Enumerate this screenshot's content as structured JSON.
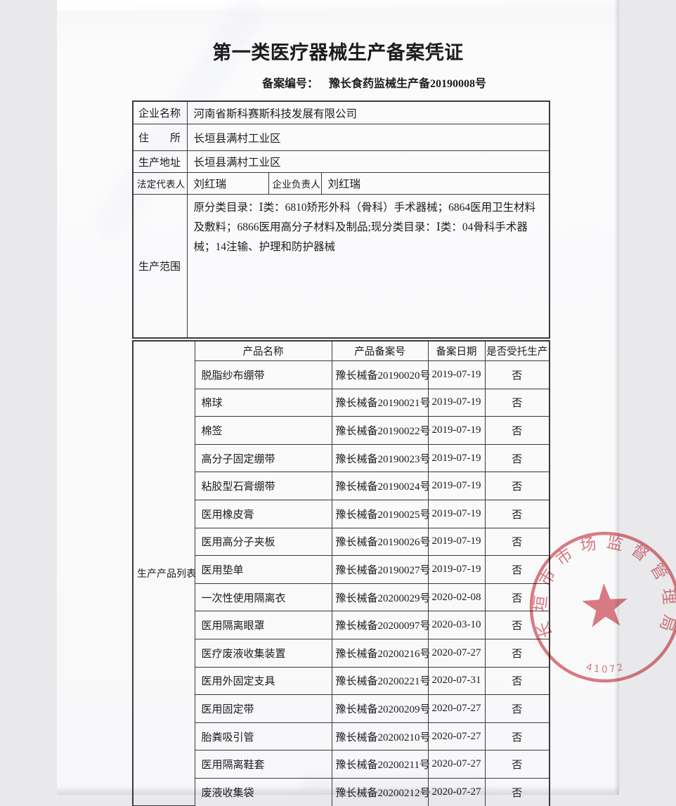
{
  "page": {
    "title": "第一类医疗器械生产备案凭证",
    "filing_label": "备案编号：",
    "filing_number": "豫长食药监械生产备20190008号"
  },
  "info": {
    "company_name_label": "企业名称",
    "company_name": "河南省斯科赛斯科技发展有限公司",
    "residence_label": "住　　所",
    "residence": "长垣县满村工业区",
    "production_address_label": "生产地址",
    "production_address": "长垣县满村工业区",
    "legal_rep_label": "法定代表人",
    "legal_rep": "刘红瑞",
    "manager_label": "企业负责人",
    "manager": "刘红瑞",
    "scope_label": "生产范围",
    "scope": "原分类目录：Ⅰ类：6810矫形外科（骨科）手术器械；6864医用卫生材料及敷料；6866医用高分子材料及制品;现分类目录：Ⅰ类：04骨科手术器械；14注输、护理和防护器械"
  },
  "products": {
    "section_label": "生产产品列表",
    "headers": [
      "产品名称",
      "产品备案号",
      "备案日期",
      "是否受托生产"
    ],
    "rows": [
      {
        "name": "脱脂纱布绷带",
        "no": "豫长械备20190020号",
        "date": "2019-07-19",
        "entrusted": "否"
      },
      {
        "name": "棉球",
        "no": "豫长械备20190021号",
        "date": "2019-07-19",
        "entrusted": "否"
      },
      {
        "name": "棉签",
        "no": "豫长械备20190022号",
        "date": "2019-07-19",
        "entrusted": "否"
      },
      {
        "name": "高分子固定绷带",
        "no": "豫长械备20190023号",
        "date": "2019-07-19",
        "entrusted": "否"
      },
      {
        "name": "粘胶型石膏绷带",
        "no": "豫长械备20190024号",
        "date": "2019-07-19",
        "entrusted": "否"
      },
      {
        "name": "医用橡皮膏",
        "no": "豫长械备20190025号",
        "date": "2019-07-19",
        "entrusted": "否"
      },
      {
        "name": "医用高分子夹板",
        "no": "豫长械备20190026号",
        "date": "2019-07-19",
        "entrusted": "否"
      },
      {
        "name": "医用垫单",
        "no": "豫长械备20190027号",
        "date": "2019-07-19",
        "entrusted": "否"
      },
      {
        "name": "一次性使用隔离衣",
        "no": "豫长械备20200029号",
        "date": "2020-02-08",
        "entrusted": "否"
      },
      {
        "name": "医用隔离眼罩",
        "no": "豫长械备20200097号",
        "date": "2020-03-10",
        "entrusted": "否"
      },
      {
        "name": "医疗废液收集装置",
        "no": "豫长械备20200216号",
        "date": "2020-07-27",
        "entrusted": "否"
      },
      {
        "name": "医用外固定支具",
        "no": "豫长械备20200221号",
        "date": "2020-07-31",
        "entrusted": "否"
      },
      {
        "name": "医用固定带",
        "no": "豫长械备20200209号",
        "date": "2020-07-27",
        "entrusted": "否"
      },
      {
        "name": "胎粪吸引管",
        "no": "豫长械备20200210号",
        "date": "2020-07-27",
        "entrusted": "否"
      },
      {
        "name": "医用隔离鞋套",
        "no": "豫长械备20200211号",
        "date": "2020-07-27",
        "entrusted": "否"
      },
      {
        "name": "废液收集袋",
        "no": "豫长械备20200212号",
        "date": "2020-07-27",
        "entrusted": "否"
      }
    ]
  },
  "stamp": {
    "agency": "长垣市市场监督管理局",
    "code": "41072",
    "color": "#d7606a"
  }
}
